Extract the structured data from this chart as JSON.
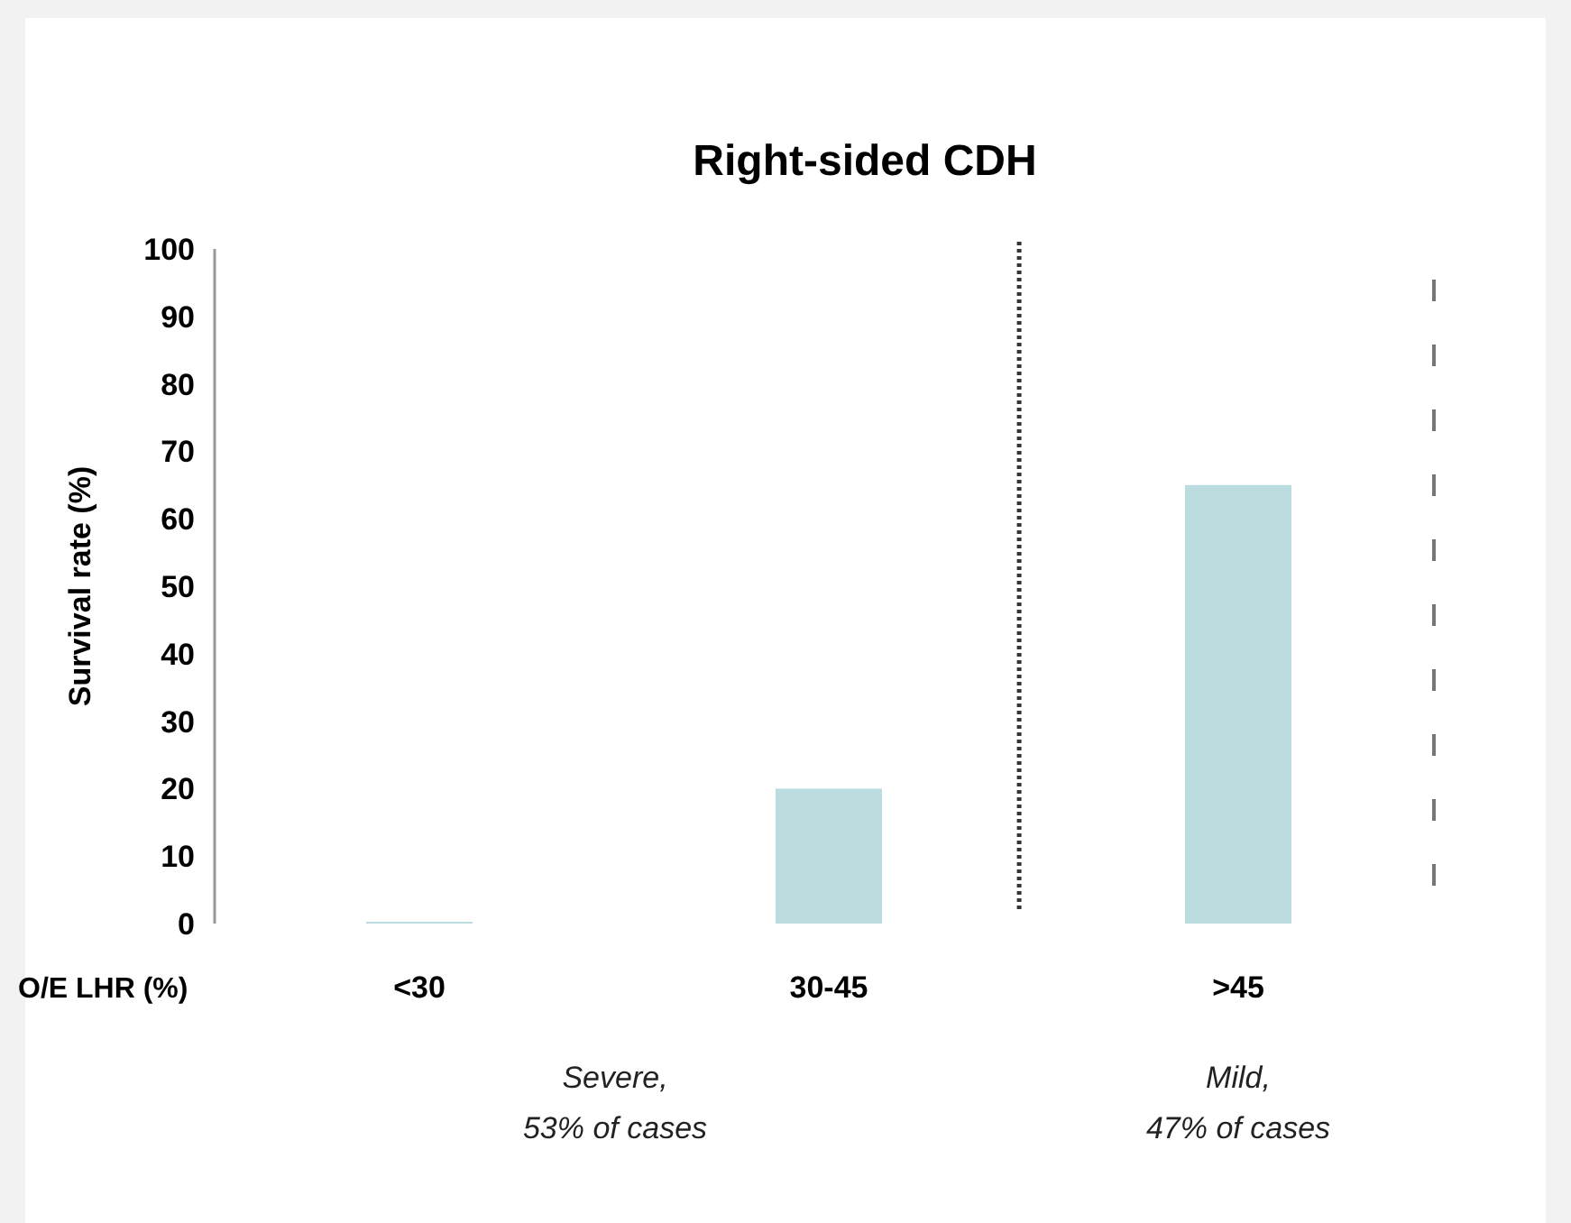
{
  "chart_data": {
    "type": "bar",
    "title": "Right-sided CDH",
    "ylabel": "Survival rate (%)",
    "xlabel": "O/E LHR (%)",
    "categories": [
      "<30",
      "30-45",
      ">45"
    ],
    "values": [
      0,
      20,
      65
    ],
    "color": "#bcdde0",
    "ylim": [
      0,
      100
    ],
    "yticks": [
      0,
      10,
      20,
      30,
      40,
      50,
      60,
      70,
      80,
      90,
      100
    ],
    "grid": false,
    "annotations": [
      "Severe,\n53% of cases",
      "Mild,\n47% of cases"
    ]
  }
}
